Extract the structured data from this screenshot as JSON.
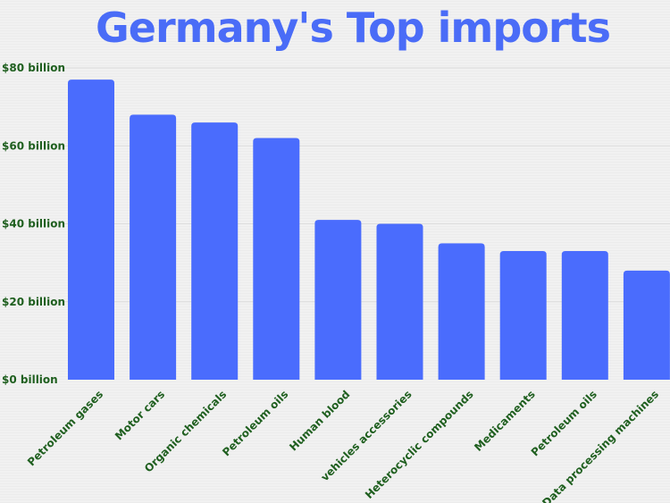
{
  "chart_data": {
    "type": "bar",
    "title": "Germany's Top imports",
    "categories": [
      "Petroleum gases",
      "Motor cars",
      "Organic chemicals",
      "Petroleum oils",
      "Human blood",
      "vehicles accessories",
      "Heterocyclic compounds",
      "Medicaments",
      "Petroleum oils",
      "Data processing machines"
    ],
    "values": [
      77,
      68,
      66,
      62,
      41,
      40,
      35,
      33,
      33,
      28
    ],
    "unit": "billion USD",
    "ylim": [
      0,
      80
    ],
    "yticks": [
      {
        "value": 0,
        "label": "$0 billion"
      },
      {
        "value": 20,
        "label": "$20 billion"
      },
      {
        "value": 40,
        "label": "$40 billion"
      },
      {
        "value": 60,
        "label": "$60 billion"
      },
      {
        "value": 80,
        "label": "$80 billion"
      }
    ],
    "grid": true,
    "bar_color": "#4a6cfd",
    "title_color": "#4a6cf7",
    "label_color": "#1f5f1f"
  }
}
